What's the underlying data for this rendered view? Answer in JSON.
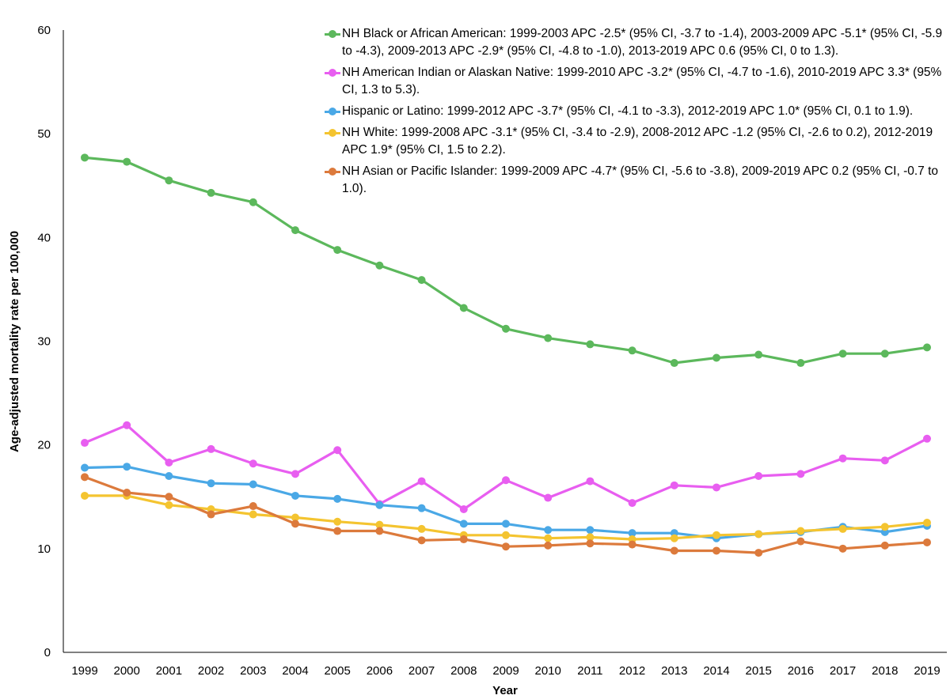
{
  "chart_data": {
    "type": "line",
    "title": "",
    "xlabel": "Year",
    "ylabel": "Age-adjusted mortality rate per 100,000",
    "ylim": [
      0,
      60
    ],
    "yticks": [
      0,
      10,
      20,
      30,
      40,
      50,
      60
    ],
    "grid": false,
    "legend_position": "top-right",
    "categories": [
      "1999",
      "2000",
      "2001",
      "2002",
      "2003",
      "2004",
      "2005",
      "2006",
      "2007",
      "2008",
      "2009",
      "2010",
      "2011",
      "2012",
      "2013",
      "2014",
      "2015",
      "2016",
      "2017",
      "2018",
      "2019"
    ],
    "series": [
      {
        "name": "NH Black or African American",
        "label": "NH Black or African American: 1999-2003 APC -2.5* (95% CI, -3.7 to -1.4), 2003-2009 APC -5.1* (95% CI, -5.9 to -4.3), 2009-2013 APC -2.9* (95% CI, -4.8 to -1.0), 2013-2019 APC 0.6 (95% CI, 0 to 1.3).",
        "color": "#5cb85c",
        "values": [
          47.7,
          47.3,
          45.5,
          44.3,
          43.4,
          40.7,
          38.8,
          37.3,
          35.9,
          33.2,
          31.2,
          30.3,
          29.7,
          29.1,
          27.9,
          28.4,
          28.7,
          27.9,
          28.8,
          28.8,
          29.4
        ]
      },
      {
        "name": "NH American Indian or Alaskan Native",
        "label": "NH American Indian or Alaskan Native: 1999-2010 APC -3.2* (95% CI, -4.7 to -1.6), 2010-2019 APC 3.3* (95% CI, 1.3 to 5.3).",
        "color": "#e85ef0",
        "values": [
          20.2,
          21.9,
          18.3,
          19.6,
          18.2,
          17.2,
          19.5,
          14.3,
          16.5,
          13.8,
          16.6,
          14.9,
          16.5,
          14.4,
          16.1,
          15.9,
          17.0,
          17.2,
          18.7,
          18.5,
          20.6
        ]
      },
      {
        "name": "Hispanic or Latino",
        "label": "Hispanic or Latino: 1999-2012 APC -3.7* (95% CI, -4.1 to -3.3), 2012-2019 APC 1.0* (95% CI, 0.1 to 1.9).",
        "color": "#4aa8e6",
        "values": [
          17.8,
          17.9,
          17.0,
          16.3,
          16.2,
          15.1,
          14.8,
          14.2,
          13.9,
          12.4,
          12.4,
          11.8,
          11.8,
          11.5,
          11.5,
          11.0,
          11.4,
          11.6,
          12.1,
          11.6,
          12.2
        ]
      },
      {
        "name": "NH White",
        "label": " NH White: 1999-2008 APC -3.1* (95% CI, -3.4 to -2.9), 2008-2012 APC -1.2 (95% CI, -2.6 to 0.2), 2012-2019 APC 1.9* (95% CI, 1.5 to 2.2).",
        "color": "#f4c430",
        "values": [
          15.1,
          15.1,
          14.2,
          13.8,
          13.3,
          13.0,
          12.6,
          12.3,
          11.9,
          11.3,
          11.3,
          11.0,
          11.1,
          10.9,
          11.0,
          11.3,
          11.4,
          11.7,
          11.9,
          12.1,
          12.5
        ]
      },
      {
        "name": "NH Asian or Pacific Islander",
        "label": "NH Asian or Pacific Islander: 1999-2009 APC -4.7* (95% CI, -5.6 to -3.8), 2009-2019 APC 0.2 (95% CI, -0.7 to 1.0).",
        "color": "#dc7a3c",
        "values": [
          16.9,
          15.4,
          15.0,
          13.3,
          14.1,
          12.4,
          11.7,
          11.7,
          10.8,
          10.9,
          10.2,
          10.3,
          10.5,
          10.4,
          9.8,
          9.8,
          9.6,
          10.7,
          10.0,
          10.3,
          10.6
        ]
      }
    ]
  }
}
